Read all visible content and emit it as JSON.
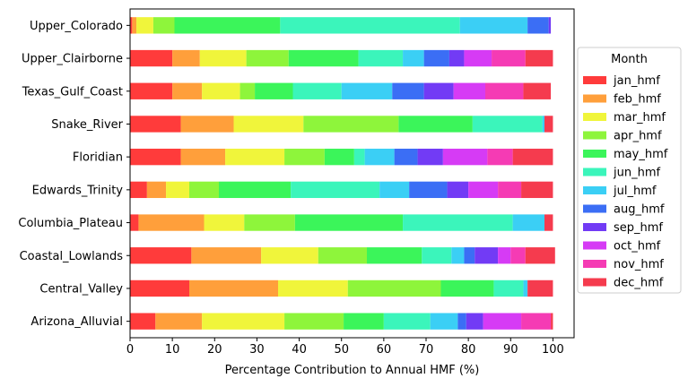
{
  "chart_data": {
    "type": "bar",
    "orientation": "horizontal",
    "stacked": true,
    "xlabel": "Percentage Contribution to Annual HMF (%)",
    "ylabel": "",
    "xlim": [
      0,
      105
    ],
    "xticks": [
      0,
      10,
      20,
      30,
      40,
      50,
      60,
      70,
      80,
      90,
      100
    ],
    "grid": false,
    "legend": {
      "title": "Month",
      "placement": "right"
    },
    "categories": [
      "Arizona_Alluvial",
      "Central_Valley",
      "Coastal_Lowlands",
      "Columbia_Plateau",
      "Edwards_Trinity",
      "Floridian",
      "Snake_River",
      "Texas_Gulf_Coast",
      "Upper_Clairborne",
      "Upper_Colorado"
    ],
    "series": [
      {
        "name": "jan_hmf",
        "color": "#ff3b3b",
        "values": [
          6.0,
          14.0,
          14.5,
          2.0,
          4.0,
          12.0,
          12.0,
          10.0,
          10.0,
          0.5
        ]
      },
      {
        "name": "feb_hmf",
        "color": "#ff9f3b",
        "values": [
          11.0,
          21.0,
          16.5,
          15.5,
          4.5,
          10.5,
          12.5,
          7.0,
          6.5,
          1.0
        ]
      },
      {
        "name": "mar_hmf",
        "color": "#f0f53b",
        "values": [
          19.5,
          16.5,
          13.5,
          9.5,
          5.5,
          14.0,
          16.5,
          9.0,
          11.0,
          4.0
        ]
      },
      {
        "name": "apr_hmf",
        "color": "#8ef53b",
        "values": [
          14.0,
          22.0,
          11.5,
          12.0,
          7.0,
          9.5,
          22.5,
          3.5,
          10.0,
          5.0
        ]
      },
      {
        "name": "may_hmf",
        "color": "#3bf55a",
        "values": [
          9.5,
          12.5,
          13.0,
          25.5,
          17.0,
          7.0,
          17.5,
          9.0,
          16.5,
          25.0
        ]
      },
      {
        "name": "jun_hmf",
        "color": "#3bf5bb",
        "values": [
          11.0,
          7.0,
          7.0,
          26.0,
          21.0,
          2.5,
          16.5,
          11.5,
          10.5,
          42.5
        ]
      },
      {
        "name": "jul_hmf",
        "color": "#3bcff5",
        "values": [
          6.5,
          1.0,
          3.0,
          7.5,
          7.0,
          7.0,
          0.5,
          12.0,
          5.0,
          16.0
        ]
      },
      {
        "name": "aug_hmf",
        "color": "#3b6ef5",
        "values": [
          2.0,
          0.0,
          2.5,
          0.0,
          9.0,
          5.5,
          0.0,
          7.5,
          6.0,
          5.0
        ]
      },
      {
        "name": "sep_hmf",
        "color": "#723bf5",
        "values": [
          4.0,
          0.0,
          5.5,
          0.0,
          5.0,
          6.0,
          0.0,
          7.0,
          3.5,
          0.5
        ]
      },
      {
        "name": "oct_hmf",
        "color": "#d63bf5",
        "values": [
          9.0,
          0.0,
          3.0,
          0.0,
          7.0,
          10.5,
          0.0,
          7.5,
          6.5,
          0.0
        ]
      },
      {
        "name": "nov_hmf",
        "color": "#f53bb4",
        "values": [
          7.0,
          0.0,
          3.5,
          0.0,
          5.5,
          6.0,
          0.0,
          9.0,
          8.0,
          0.0
        ]
      },
      {
        "name": "dec_hmf",
        "color": "#f53b4e",
        "values": [
          0.5,
          6.0,
          7.0,
          2.0,
          7.5,
          9.5,
          2.0,
          6.5,
          6.5,
          0.0
        ]
      }
    ]
  }
}
